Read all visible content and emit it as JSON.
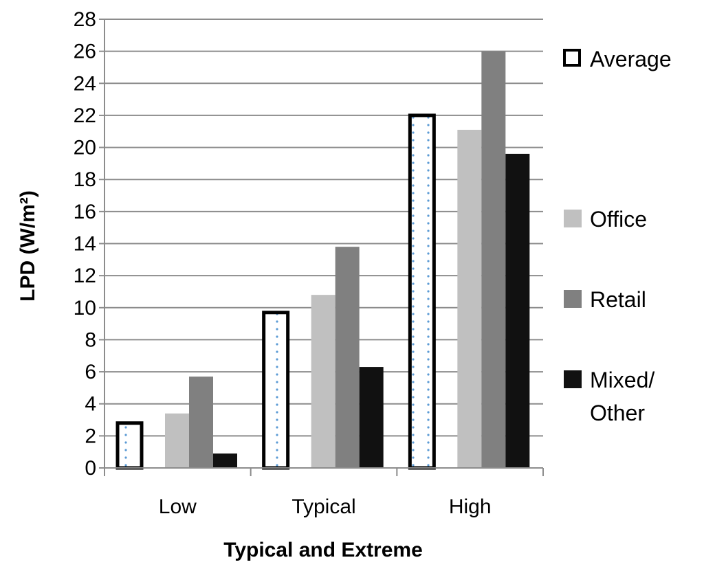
{
  "chart_data": {
    "type": "bar",
    "title": "",
    "xlabel": "Typical and Extreme",
    "ylabel": "LPD (W/m²)",
    "ylim": [
      0,
      28
    ],
    "yticks": [
      0,
      2,
      4,
      6,
      8,
      10,
      12,
      14,
      16,
      18,
      20,
      22,
      24,
      26,
      28
    ],
    "grid": true,
    "legend_position": "right",
    "categories": [
      "Low",
      "Typical",
      "High"
    ],
    "series": [
      {
        "name": "Average",
        "values": [
          2.8,
          9.7,
          22.0
        ],
        "color": "#ffffff",
        "style": "dotted-outline"
      },
      {
        "name": "Office",
        "values": [
          3.4,
          10.8,
          21.1
        ],
        "color": "#c0c0c0"
      },
      {
        "name": "Retail",
        "values": [
          5.7,
          13.8,
          26.0
        ],
        "color": "#808080"
      },
      {
        "name": "Mixed/\nOther",
        "values": [
          0.9,
          6.3,
          19.6
        ],
        "color": "#111111"
      }
    ]
  }
}
